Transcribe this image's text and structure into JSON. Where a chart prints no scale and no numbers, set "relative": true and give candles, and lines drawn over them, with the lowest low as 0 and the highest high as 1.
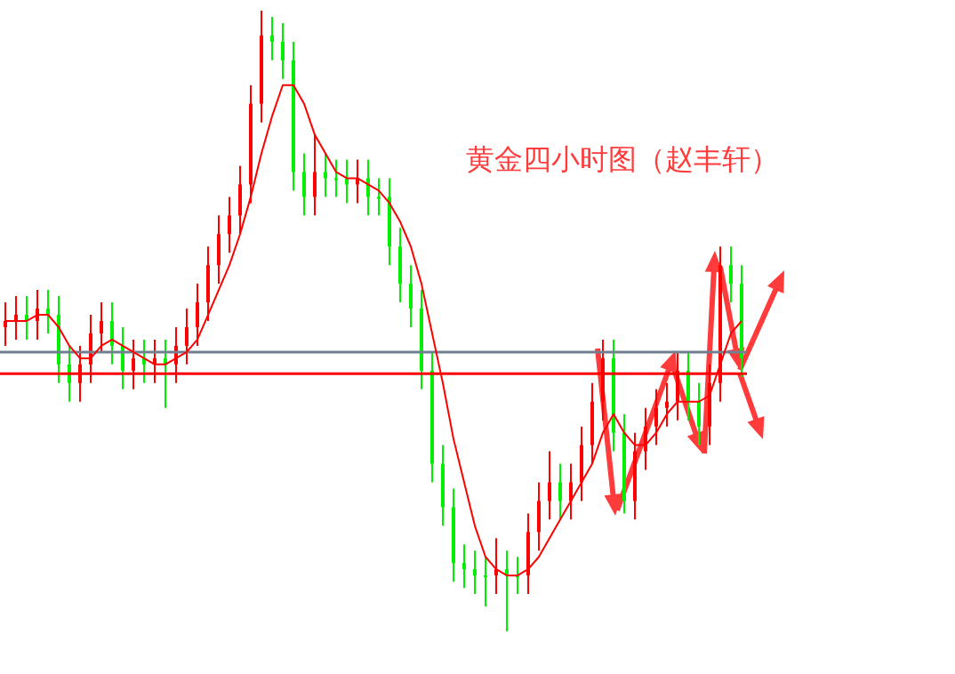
{
  "chart_data": {
    "type": "candlestick",
    "title": "黄金四小时图（赵丰轩）",
    "relative": true,
    "categories": [
      null,
      null,
      null,
      null,
      null,
      null,
      null,
      null,
      null,
      null,
      null,
      null,
      null,
      null,
      null,
      null,
      null,
      null,
      null,
      null,
      null,
      null,
      null,
      null,
      null,
      null,
      null,
      null,
      null,
      null,
      null,
      null,
      null,
      null,
      null,
      null,
      null,
      null,
      null,
      null,
      null,
      null,
      null,
      null,
      null,
      null,
      null,
      null,
      null,
      null,
      null,
      null,
      null,
      null,
      null,
      null,
      null,
      null,
      null,
      null,
      null,
      null,
      null,
      null,
      null,
      null,
      null,
      null,
      null,
      null
    ],
    "series": [
      {
        "type": "line",
        "color": "#ff0000",
        "values": [
          0.5,
          0.5,
          0.5,
          0.51,
          0.51,
          0.49,
          0.46,
          0.44,
          0.44,
          0.46,
          0.47,
          0.46,
          0.45,
          0.44,
          0.43,
          0.43,
          0.44,
          0.45,
          0.47,
          0.51,
          0.55,
          0.59,
          0.64,
          0.7,
          0.77,
          0.83,
          0.88,
          0.88,
          0.85,
          0.8,
          0.77,
          0.74,
          0.73,
          0.73,
          0.72,
          0.71,
          0.69,
          0.66,
          0.62,
          0.56,
          0.48,
          0.4,
          0.31,
          0.24,
          0.17,
          0.12,
          0.1,
          0.09,
          0.09,
          0.1,
          0.12,
          0.15,
          0.18,
          0.21,
          0.24,
          0.27,
          0.32,
          0.35,
          0.32,
          0.3,
          0.3,
          0.32,
          0.35,
          0.37,
          0.37,
          0.37,
          0.38,
          0.43,
          0.48,
          0.5
        ]
      },
      {
        "colors": [
          "#ff0000",
          "#ff0000",
          "#00ee00",
          "#ff0000",
          "#00ee00",
          "#00ee00",
          "#00ee00",
          "#ff0000",
          "#ff0000",
          "#ff0000",
          "#00ee00",
          "#00ee00",
          "#ff0000",
          "#00ee00",
          "#ff0000",
          "#00ee00",
          "#ff0000",
          "#ff0000",
          "#ff0000",
          "#ff0000",
          "#ff0000",
          "#ff0000",
          "#ff0000",
          "#ff0000",
          "#ff0000",
          "#00ee00",
          "#00ee00",
          "#00ee00",
          "#00ee00",
          "#ff0000",
          "#00ee00",
          "#00ee00",
          "#00ee00",
          "#ff0000",
          "#00ee00",
          "#00ee00",
          "#00ee00",
          "#00ee00",
          "#00ee00",
          "#00ee00",
          "#00ee00",
          "#00ee00",
          "#00ee00",
          "#00ee00",
          "#00ee00",
          "#00ee00",
          "#ff0000",
          "#00ee00",
          "#00ee00",
          "#ff0000",
          "#ff0000",
          "#ff0000",
          "#00ee00",
          "#ff0000",
          "#ff0000",
          "#ff0000",
          "#ff0000",
          "#00ee00",
          "#00ee00",
          "#ff0000",
          "#ff0000",
          "#ff0000",
          "#ff0000",
          "#ff0000",
          "#00ee00",
          "#00ee00",
          "#ff0000",
          "#ff0000",
          "#00ee00",
          "#00ee00"
        ],
        "ohlc": [
          [
            0.49,
            0.53,
            0.46,
            0.5
          ],
          [
            0.5,
            0.54,
            0.47,
            0.51
          ],
          [
            0.51,
            0.54,
            0.47,
            0.5
          ],
          [
            0.5,
            0.55,
            0.47,
            0.52
          ],
          [
            0.52,
            0.55,
            0.48,
            0.51
          ],
          [
            0.51,
            0.54,
            0.4,
            0.43
          ],
          [
            0.43,
            0.46,
            0.37,
            0.4
          ],
          [
            0.4,
            0.46,
            0.37,
            0.43
          ],
          [
            0.43,
            0.51,
            0.4,
            0.48
          ],
          [
            0.48,
            0.53,
            0.45,
            0.5
          ],
          [
            0.5,
            0.53,
            0.43,
            0.46
          ],
          [
            0.46,
            0.49,
            0.39,
            0.42
          ],
          [
            0.42,
            0.47,
            0.39,
            0.44
          ],
          [
            0.44,
            0.47,
            0.4,
            0.43
          ],
          [
            0.43,
            0.47,
            0.4,
            0.44
          ],
          [
            0.44,
            0.47,
            0.36,
            0.43
          ],
          [
            0.43,
            0.49,
            0.4,
            0.46
          ],
          [
            0.46,
            0.52,
            0.43,
            0.49
          ],
          [
            0.49,
            0.56,
            0.46,
            0.53
          ],
          [
            0.53,
            0.62,
            0.5,
            0.59
          ],
          [
            0.59,
            0.67,
            0.56,
            0.64
          ],
          [
            0.64,
            0.7,
            0.61,
            0.67
          ],
          [
            0.67,
            0.75,
            0.64,
            0.72
          ],
          [
            0.72,
            0.88,
            0.69,
            0.85
          ],
          [
            0.85,
            1,
            0.82,
            0.96
          ],
          [
            0.96,
            0.99,
            0.92,
            0.95
          ],
          [
            0.95,
            0.98,
            0.89,
            0.92
          ],
          [
            0.92,
            0.95,
            0.71,
            0.74
          ],
          [
            0.74,
            0.77,
            0.67,
            0.7
          ],
          [
            0.7,
            0.8,
            0.67,
            0.74
          ],
          [
            0.74,
            0.77,
            0.7,
            0.73
          ],
          [
            0.73,
            0.76,
            0.7,
            0.73
          ],
          [
            0.73,
            0.76,
            0.69,
            0.72
          ],
          [
            0.72,
            0.76,
            0.69,
            0.73
          ],
          [
            0.73,
            0.76,
            0.67,
            0.7
          ],
          [
            0.7,
            0.73,
            0.67,
            0.7
          ],
          [
            0.7,
            0.73,
            0.59,
            0.62
          ],
          [
            0.62,
            0.65,
            0.53,
            0.56
          ],
          [
            0.56,
            0.59,
            0.49,
            0.52
          ],
          [
            0.52,
            0.55,
            0.39,
            0.42
          ],
          [
            0.42,
            0.45,
            0.24,
            0.27
          ],
          [
            0.27,
            0.3,
            0.17,
            0.2
          ],
          [
            0.2,
            0.23,
            0.08,
            0.11
          ],
          [
            0.11,
            0.14,
            0.07,
            0.1
          ],
          [
            0.1,
            0.13,
            0.06,
            0.09
          ],
          [
            0.09,
            0.12,
            0.04,
            0.09
          ],
          [
            0.09,
            0.15,
            0.06,
            0.1
          ],
          [
            0.1,
            0.13,
            0,
            0.09
          ],
          [
            0.09,
            0.12,
            0.06,
            0.09
          ],
          [
            0.09,
            0.19,
            0.06,
            0.16
          ],
          [
            0.16,
            0.24,
            0.13,
            0.21
          ],
          [
            0.21,
            0.29,
            0.18,
            0.24
          ],
          [
            0.24,
            0.27,
            0.18,
            0.21
          ],
          [
            0.21,
            0.27,
            0.18,
            0.24
          ],
          [
            0.24,
            0.33,
            0.21,
            0.3
          ],
          [
            0.3,
            0.4,
            0.27,
            0.37
          ],
          [
            0.37,
            0.47,
            0.34,
            0.44
          ],
          [
            0.44,
            0.47,
            0.29,
            0.32
          ],
          [
            0.32,
            0.35,
            0.19,
            0.21
          ],
          [
            0.21,
            0.32,
            0.18,
            0.29
          ],
          [
            0.29,
            0.36,
            0.26,
            0.33
          ],
          [
            0.33,
            0.39,
            0.3,
            0.36
          ],
          [
            0.36,
            0.4,
            0.33,
            0.37
          ],
          [
            0.37,
            0.45,
            0.34,
            0.42
          ],
          [
            0.42,
            0.45,
            0.34,
            0.37
          ],
          [
            0.37,
            0.4,
            0.3,
            0.33
          ],
          [
            0.33,
            0.43,
            0.3,
            0.4
          ],
          [
            0.4,
            0.62,
            0.37,
            0.59
          ],
          [
            0.59,
            0.62,
            0.53,
            0.56
          ],
          [
            0.56,
            0.59,
            0.41,
            0.44
          ]
        ]
      }
    ],
    "ref_lines": [
      {
        "axis": "y",
        "value": 0.45,
        "color": "#708090"
      },
      {
        "axis": "y",
        "value": 0.415,
        "color": "#ff0000"
      }
    ]
  }
}
